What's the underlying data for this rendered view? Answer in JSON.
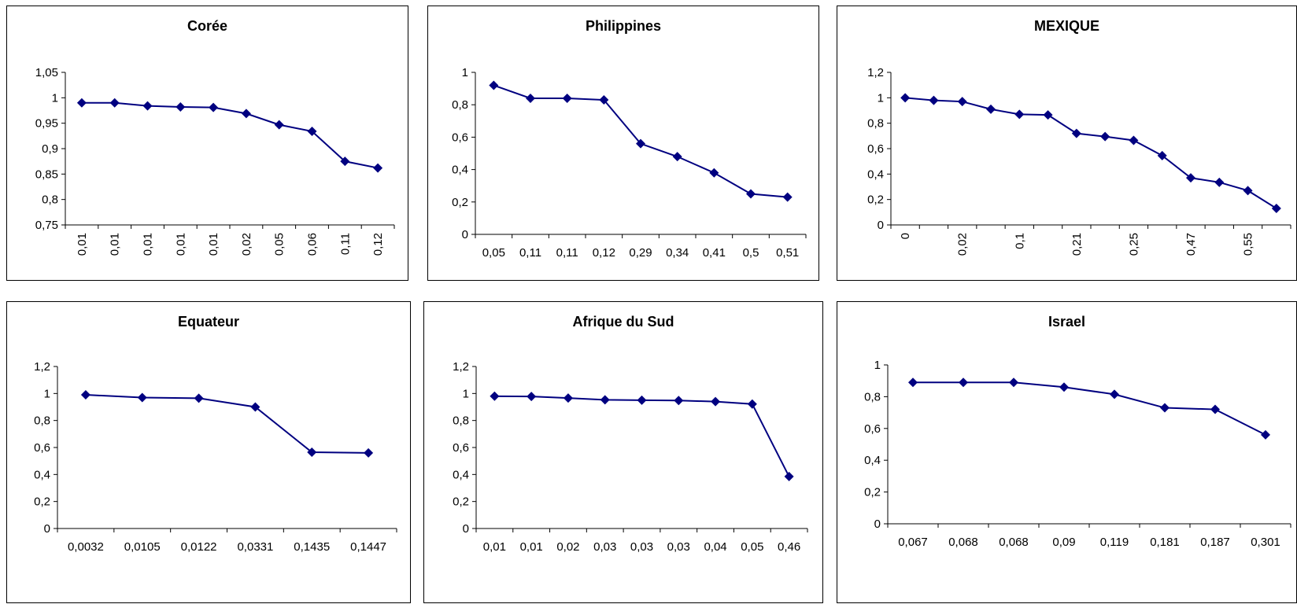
{
  "colors": {
    "line": "#000080",
    "axis": "#000000",
    "text": "#000000",
    "background": "#ffffff"
  },
  "chart_data": [
    {
      "type": "line",
      "title": "Corée",
      "categories": [
        "0,01",
        "0,01",
        "0,01",
        "0,01",
        "0,01",
        "0,02",
        "0,05",
        "0,06",
        "0,11",
        "0,12"
      ],
      "series": [
        {
          "values": [
            0.99,
            0.99,
            0.984,
            0.982,
            0.981,
            0.969,
            0.947,
            0.934,
            0.875,
            0.862
          ]
        }
      ],
      "yticks": [
        "0,75",
        "0,8",
        "0,85",
        "0,9",
        "0,95",
        "1",
        "1,05"
      ],
      "ylim": [
        0.75,
        1.05
      ],
      "x_labels_rotated": true,
      "marker": "diamond",
      "grid": false
    },
    {
      "type": "line",
      "title": "Philippines",
      "categories": [
        "0,05",
        "0,11",
        "0,11",
        "0,12",
        "0,29",
        "0,34",
        "0,41",
        "0,5",
        "0,51"
      ],
      "series": [
        {
          "values": [
            0.92,
            0.84,
            0.84,
            0.83,
            0.56,
            0.48,
            0.38,
            0.25,
            0.23
          ]
        }
      ],
      "yticks": [
        "0",
        "0,2",
        "0,4",
        "0,6",
        "0,8",
        "1"
      ],
      "ylim": [
        0,
        1
      ],
      "x_labels_rotated": false,
      "marker": "diamond",
      "grid": false
    },
    {
      "type": "line",
      "title": "MEXIQUE",
      "categories": [
        "0",
        "",
        "0,02",
        "",
        "0,1",
        "",
        "0,21",
        "",
        "0,25",
        "",
        "0,47",
        "",
        "0,55",
        ""
      ],
      "series": [
        {
          "values": [
            1.0,
            0.98,
            0.97,
            0.91,
            0.87,
            0.865,
            0.72,
            0.695,
            0.665,
            0.545,
            0.37,
            0.335,
            0.27,
            0.13
          ]
        }
      ],
      "yticks": [
        "0",
        "0,2",
        "0,4",
        "0,6",
        "0,8",
        "1",
        "1,2"
      ],
      "ylim": [
        0,
        1.2
      ],
      "x_labels_rotated": true,
      "marker": "diamond",
      "grid": false
    },
    {
      "type": "line",
      "title": "Equateur",
      "categories": [
        "0,0032",
        "0,0105",
        "0,0122",
        "0,0331",
        "0,1435",
        "0,1447"
      ],
      "series": [
        {
          "values": [
            0.99,
            0.97,
            0.965,
            0.9,
            0.565,
            0.56
          ]
        }
      ],
      "yticks": [
        "0",
        "0,2",
        "0,4",
        "0,6",
        "0,8",
        "1",
        "1,2"
      ],
      "ylim": [
        0,
        1.2
      ],
      "x_labels_rotated": false,
      "marker": "diamond",
      "grid": false
    },
    {
      "type": "line",
      "title": "Afrique du Sud",
      "categories": [
        "0,01",
        "0,01",
        "0,02",
        "0,03",
        "0,03",
        "0,03",
        "0,04",
        "0,05",
        "0,46"
      ],
      "series": [
        {
          "values": [
            0.98,
            0.978,
            0.966,
            0.953,
            0.95,
            0.948,
            0.94,
            0.922,
            0.385
          ]
        }
      ],
      "yticks": [
        "0",
        "0,2",
        "0,4",
        "0,6",
        "0,8",
        "1",
        "1,2"
      ],
      "ylim": [
        0,
        1.2
      ],
      "x_labels_rotated": false,
      "marker": "diamond",
      "grid": false
    },
    {
      "type": "line",
      "title": "Israel",
      "categories": [
        "0,067",
        "0,068",
        "0,068",
        "0,09",
        "0,119",
        "0,181",
        "0,187",
        "0,301"
      ],
      "series": [
        {
          "values": [
            0.89,
            0.89,
            0.89,
            0.86,
            0.815,
            0.73,
            0.72,
            0.56
          ]
        }
      ],
      "yticks": [
        "0",
        "0,2",
        "0,4",
        "0,6",
        "0,8",
        "1"
      ],
      "ylim": [
        0,
        1
      ],
      "x_labels_rotated": false,
      "marker": "diamond",
      "grid": false
    }
  ]
}
